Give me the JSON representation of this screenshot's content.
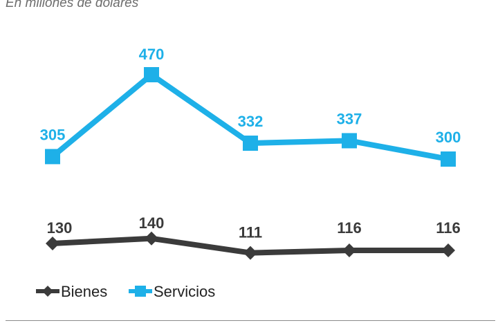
{
  "subtitle": "En millones de dólares",
  "chart_data": {
    "type": "line",
    "title": "",
    "subtitle": "En millones de dólares",
    "xlabel": "",
    "ylabel": "",
    "categories": [
      "",
      "",
      "",
      "",
      ""
    ],
    "ylim": [
      0,
      500
    ],
    "grid": false,
    "legend_position": "bottom-left",
    "series": [
      {
        "name": "Servicios",
        "values": [
          305,
          470,
          332,
          337,
          300
        ],
        "color": "#1eb0e8",
        "marker": "square",
        "labels": [
          "305",
          "470",
          "332",
          "337",
          "300"
        ]
      },
      {
        "name": "Bienes",
        "values": [
          130,
          140,
          111,
          116,
          116
        ],
        "color": "#3b3b3b",
        "marker": "diamond",
        "labels": [
          "130",
          "140",
          "111",
          "116",
          "116"
        ]
      }
    ]
  }
}
